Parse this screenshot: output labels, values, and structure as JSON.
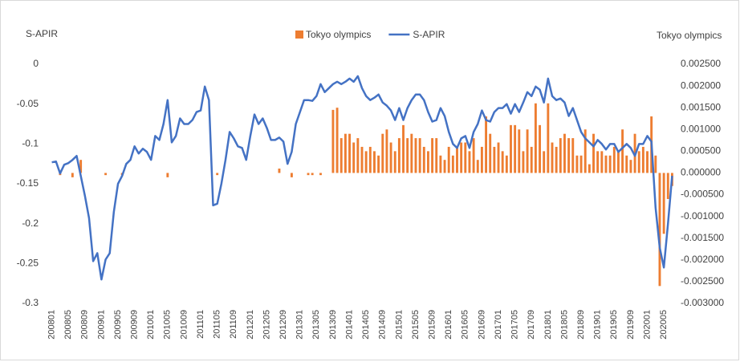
{
  "chart_data": {
    "type": "bar-line",
    "ylabel": "S-APIR",
    "y2label": "Tokyo olympics",
    "categories": [
      "200801",
      null,
      null,
      null,
      "200805",
      null,
      null,
      null,
      "200809",
      null,
      null,
      null,
      "200901",
      null,
      null,
      null,
      "200905",
      null,
      null,
      null,
      "200909",
      null,
      null,
      null,
      "201001",
      null,
      null,
      null,
      "201005",
      null,
      null,
      null,
      "201009",
      null,
      null,
      null,
      "201101",
      null,
      null,
      null,
      "201105",
      null,
      null,
      null,
      "201109",
      null,
      null,
      null,
      "201201",
      null,
      null,
      null,
      "201205",
      null,
      null,
      null,
      "201209",
      null,
      null,
      null,
      "201301",
      null,
      null,
      null,
      "201305",
      null,
      null,
      null,
      "201309",
      null,
      null,
      null,
      "201401",
      null,
      null,
      null,
      "201405",
      null,
      null,
      null,
      "201409",
      null,
      null,
      null,
      "201501",
      null,
      null,
      null,
      "201505",
      null,
      null,
      null,
      "201509",
      null,
      null,
      null,
      "201601",
      null,
      null,
      null,
      "201605",
      null,
      null,
      null,
      "201609",
      null,
      null,
      null,
      "201701",
      null,
      null,
      null,
      "201705",
      null,
      null,
      null,
      "201709",
      null,
      null,
      null,
      "201801",
      null,
      null,
      null,
      "201805",
      null,
      null,
      null,
      "201809",
      null,
      null,
      null,
      "201901",
      null,
      null,
      null,
      "201905",
      null,
      null,
      null,
      "201909",
      null,
      null,
      null,
      "202001",
      null,
      null,
      null,
      "202005",
      null,
      null
    ],
    "series": [
      {
        "name": "Tokyo olympics",
        "color": "#ed7d31",
        "kind": "bar",
        "axis": "y2",
        "values": [
          0,
          0,
          -5e-05,
          0,
          0,
          -0.0001,
          0,
          0.0003,
          0,
          0,
          0,
          0,
          0,
          -5e-05,
          0,
          0,
          0,
          -5e-05,
          0,
          0,
          0,
          0,
          0,
          0,
          0,
          0,
          0,
          0,
          -0.0001,
          0,
          0,
          0,
          0,
          0,
          0,
          0,
          0,
          0,
          0,
          0,
          -5e-05,
          0,
          0,
          0,
          0,
          0,
          0,
          0,
          0,
          0,
          0,
          0,
          0,
          0,
          0,
          0.0001,
          0,
          0,
          -0.0001,
          0,
          0,
          0,
          -5e-05,
          -5e-05,
          0,
          -5e-05,
          0,
          0,
          0.00145,
          0.0015,
          0.0008,
          0.0009,
          0.0009,
          0.0007,
          0.0008,
          0.0006,
          0.0005,
          0.0006,
          0.0005,
          0.0004,
          0.0009,
          0.001,
          0.0007,
          0.0005,
          0.0008,
          0.0011,
          0.0008,
          0.0009,
          0.0008,
          0.0008,
          0.0006,
          0.0005,
          0.0008,
          0.0008,
          0.0004,
          0.0003,
          0.0006,
          0.0004,
          0.0006,
          0.0007,
          0.0007,
          0.0005,
          0.0008,
          0.0003,
          0.0006,
          0.0013,
          0.0009,
          0.0006,
          0.0007,
          0.0005,
          0.0004,
          0.0011,
          0.0011,
          0.001,
          0.0005,
          0.001,
          0.0006,
          0.0016,
          0.0011,
          0.0005,
          0.0016,
          0.0007,
          0.0006,
          0.0008,
          0.0009,
          0.0008,
          0.0008,
          0.0004,
          0.0004,
          0.001,
          0.0002,
          0.0009,
          0.0005,
          0.0005,
          0.0004,
          0.0004,
          0.0006,
          0.0005,
          0.001,
          0.0004,
          0.0003,
          0.0009,
          0.0005,
          0.0006,
          0.0005,
          0.0013,
          0.0004,
          -0.0026,
          -0.0014,
          -0.0006,
          -0.0003
        ]
      },
      {
        "name": "S-APIR",
        "color": "#4472c4",
        "kind": "line",
        "axis": "y",
        "values": [
          -0.123,
          -0.122,
          -0.137,
          -0.126,
          -0.124,
          -0.12,
          -0.115,
          -0.14,
          -0.165,
          -0.193,
          -0.247,
          -0.237,
          -0.27,
          -0.245,
          -0.237,
          -0.185,
          -0.15,
          -0.14,
          -0.125,
          -0.12,
          -0.103,
          -0.112,
          -0.106,
          -0.11,
          -0.12,
          -0.09,
          -0.095,
          -0.075,
          -0.045,
          -0.098,
          -0.09,
          -0.068,
          -0.075,
          -0.075,
          -0.07,
          -0.06,
          -0.058,
          -0.028,
          -0.045,
          -0.177,
          -0.175,
          -0.15,
          -0.12,
          -0.085,
          -0.093,
          -0.103,
          -0.105,
          -0.12,
          -0.09,
          -0.063,
          -0.075,
          -0.068,
          -0.08,
          -0.095,
          -0.095,
          -0.092,
          -0.097,
          -0.125,
          -0.11,
          -0.075,
          -0.06,
          -0.045,
          -0.045,
          -0.046,
          -0.04,
          -0.025,
          -0.035,
          -0.03,
          -0.025,
          -0.022,
          -0.025,
          -0.022,
          -0.018,
          -0.022,
          -0.015,
          -0.03,
          -0.04,
          -0.045,
          -0.042,
          -0.038,
          -0.048,
          -0.052,
          -0.058,
          -0.07,
          -0.055,
          -0.07,
          -0.055,
          -0.045,
          -0.038,
          -0.038,
          -0.045,
          -0.06,
          -0.072,
          -0.07,
          -0.055,
          -0.065,
          -0.085,
          -0.1,
          -0.105,
          -0.093,
          -0.09,
          -0.105,
          -0.085,
          -0.075,
          -0.058,
          -0.07,
          -0.072,
          -0.06,
          -0.055,
          -0.055,
          -0.05,
          -0.062,
          -0.05,
          -0.06,
          -0.048,
          -0.035,
          -0.04,
          -0.028,
          -0.032,
          -0.048,
          -0.018,
          -0.04,
          -0.045,
          -0.043,
          -0.048,
          -0.065,
          -0.055,
          -0.07,
          -0.085,
          -0.093,
          -0.098,
          -0.103,
          -0.095,
          -0.1,
          -0.107,
          -0.1,
          -0.1,
          -0.11,
          -0.105,
          -0.1,
          -0.105,
          -0.115,
          -0.1,
          -0.1,
          -0.09,
          -0.097,
          -0.18,
          -0.23,
          -0.255,
          -0.2,
          -0.14
        ]
      }
    ],
    "ylim": [
      -0.3,
      0
    ],
    "yticks": [
      0,
      -0.05,
      -0.1,
      -0.15,
      -0.2,
      -0.25,
      -0.3
    ],
    "y2lim": [
      -0.003,
      0.0025
    ],
    "y2ticks": [
      {
        "value": 0.0025,
        "label": "0.002500"
      },
      {
        "value": 0.002,
        "label": "0.002000"
      },
      {
        "value": 0.0015,
        "label": "0.001500"
      },
      {
        "value": 0.001,
        "label": "0.001000"
      },
      {
        "value": 0.0005,
        "label": "0.000500"
      },
      {
        "value": 0,
        "label": "0.000000"
      },
      {
        "value": -0.0005,
        "label": "-0.000500"
      },
      {
        "value": -0.001,
        "label": "-0.001000"
      },
      {
        "value": -0.0015,
        "label": "-0.001500"
      },
      {
        "value": -0.002,
        "label": "-0.002000"
      },
      {
        "value": -0.0025,
        "label": "-0.002500"
      },
      {
        "value": -0.003,
        "label": "-0.003000"
      }
    ],
    "legend": "top",
    "grid": false
  }
}
